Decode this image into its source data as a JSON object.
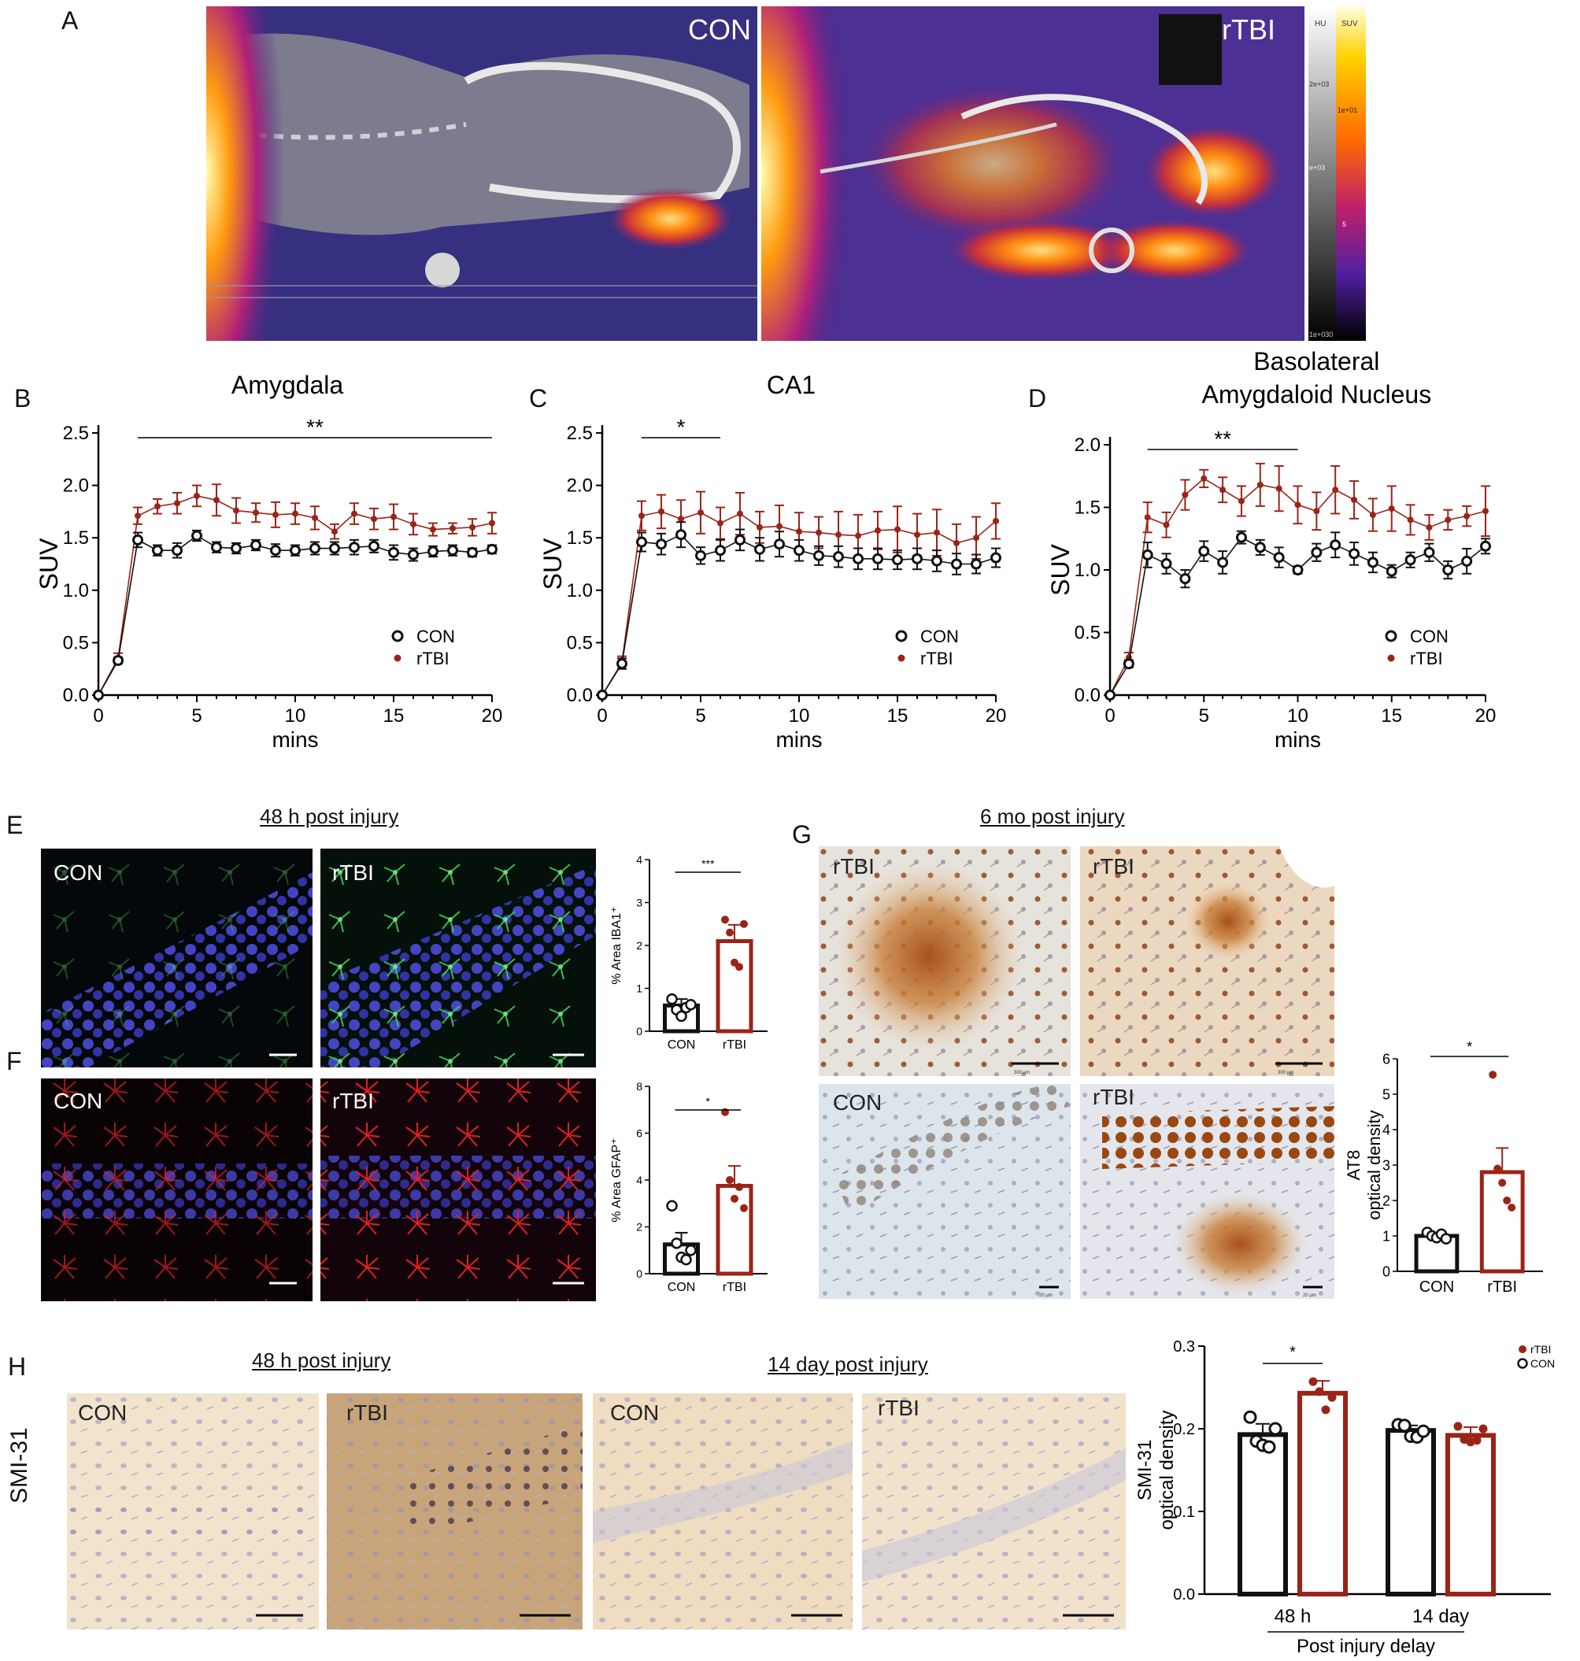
{
  "panel_letters": {
    "A": "A",
    "B": "B",
    "C": "C",
    "D": "D",
    "E": "E",
    "F": "F",
    "G": "G",
    "H": "H"
  },
  "pet": {
    "labels": [
      "CON",
      "rTBI"
    ],
    "colorbar": {
      "hu_label": "HU",
      "suv_label": "SUV",
      "hu_ticks": [
        "2e+03",
        "e+03",
        "1e+030"
      ],
      "suv_ticks": [
        "1e+01",
        "5"
      ]
    },
    "colors": {
      "fire": "#f4a000",
      "accent": "#cc2b00",
      "background": "#2a2060"
    }
  },
  "micro": {
    "e_title": "48 h post injury",
    "g_title": "6 mo post injury",
    "h_title_48": "48 h post injury",
    "h_title_14": "14 day post injury",
    "h_side_label": "SMI-31",
    "e_labels": [
      "CON",
      "rTBI"
    ],
    "f_labels": [
      "CON",
      "rTBI"
    ],
    "g_labels": [
      "rTBI",
      "rTBI",
      "CON",
      "rTBI"
    ],
    "h_labels": [
      "CON",
      "rTBI",
      "CON",
      "rTBI"
    ],
    "scale_texts": [
      "300 µm",
      "300 µm",
      "20 µm",
      "20 µm"
    ]
  },
  "chart_data": [
    {
      "id": "B",
      "type": "line",
      "title": "Amygdala",
      "xlabel": "mins",
      "ylabel": "SUV",
      "xlim": [
        0,
        20
      ],
      "ylim": [
        0,
        2.5
      ],
      "xticks": [
        0,
        5,
        10,
        15,
        20
      ],
      "yticks": [
        0.0,
        0.5,
        1.0,
        1.5,
        2.0,
        2.5
      ],
      "x": [
        0,
        1,
        2,
        3,
        4,
        5,
        6,
        7,
        8,
        9,
        10,
        11,
        12,
        13,
        14,
        15,
        16,
        17,
        18,
        19,
        20
      ],
      "series": [
        {
          "name": "CON",
          "color": "#111111",
          "marker": "open-circle",
          "values": [
            0,
            0.33,
            1.48,
            1.38,
            1.38,
            1.52,
            1.41,
            1.4,
            1.43,
            1.38,
            1.38,
            1.4,
            1.4,
            1.41,
            1.42,
            1.36,
            1.34,
            1.37,
            1.38,
            1.36,
            1.39
          ],
          "errors": [
            0,
            0.03,
            0.07,
            0.05,
            0.07,
            0.05,
            0.05,
            0.05,
            0.05,
            0.06,
            0.05,
            0.06,
            0.06,
            0.07,
            0.06,
            0.07,
            0.06,
            0.05,
            0.05,
            0.04,
            0.04
          ]
        },
        {
          "name": "rTBI",
          "color": "#9b2418",
          "marker": "filled-circle",
          "values": [
            0,
            0.35,
            1.71,
            1.8,
            1.83,
            1.9,
            1.86,
            1.76,
            1.74,
            1.72,
            1.73,
            1.69,
            1.56,
            1.73,
            1.68,
            1.7,
            1.63,
            1.58,
            1.59,
            1.6,
            1.64
          ],
          "errors": [
            0,
            0.05,
            0.08,
            0.07,
            0.1,
            0.1,
            0.15,
            0.12,
            0.09,
            0.12,
            0.1,
            0.11,
            0.07,
            0.1,
            0.1,
            0.12,
            0.1,
            0.06,
            0.05,
            0.08,
            0.1
          ]
        }
      ],
      "significance": {
        "label": "**",
        "from": 2,
        "to": 20
      },
      "legend_position": "lower-right"
    },
    {
      "id": "C",
      "type": "line",
      "title": "CA1",
      "xlabel": "mins",
      "ylabel": "SUV",
      "xlim": [
        0,
        20
      ],
      "ylim": [
        0,
        2.5
      ],
      "xticks": [
        0,
        5,
        10,
        15,
        20
      ],
      "yticks": [
        0.0,
        0.5,
        1.0,
        1.5,
        2.0,
        2.5
      ],
      "x": [
        0,
        1,
        2,
        3,
        4,
        5,
        6,
        7,
        8,
        9,
        10,
        11,
        12,
        13,
        14,
        15,
        16,
        17,
        18,
        19,
        20
      ],
      "series": [
        {
          "name": "CON",
          "color": "#111111",
          "marker": "open-circle",
          "values": [
            0,
            0.3,
            1.46,
            1.44,
            1.53,
            1.33,
            1.38,
            1.48,
            1.39,
            1.44,
            1.38,
            1.33,
            1.32,
            1.3,
            1.3,
            1.29,
            1.3,
            1.28,
            1.25,
            1.25,
            1.31
          ],
          "errors": [
            0,
            0.05,
            0.09,
            0.1,
            0.12,
            0.08,
            0.1,
            0.1,
            0.11,
            0.12,
            0.1,
            0.09,
            0.1,
            0.1,
            0.1,
            0.09,
            0.1,
            0.1,
            0.1,
            0.09,
            0.09
          ]
        },
        {
          "name": "rTBI",
          "color": "#9b2418",
          "marker": "filled-circle",
          "values": [
            0,
            0.31,
            1.71,
            1.75,
            1.68,
            1.74,
            1.64,
            1.73,
            1.6,
            1.61,
            1.56,
            1.55,
            1.53,
            1.52,
            1.57,
            1.58,
            1.53,
            1.55,
            1.45,
            1.5,
            1.66
          ],
          "errors": [
            0,
            0.06,
            0.14,
            0.16,
            0.18,
            0.2,
            0.15,
            0.2,
            0.15,
            0.2,
            0.18,
            0.15,
            0.22,
            0.2,
            0.18,
            0.22,
            0.2,
            0.22,
            0.18,
            0.2,
            0.17
          ]
        }
      ],
      "significance": {
        "label": "*",
        "from": 2,
        "to": 6
      },
      "legend_position": "lower-right"
    },
    {
      "id": "D",
      "type": "line",
      "title": "Basolateral Amygdaloid Nucleus",
      "title_lines": [
        "Basolateral",
        "Amygdaloid Nucleus"
      ],
      "xlabel": "mins",
      "ylabel": "SUV",
      "xlim": [
        0,
        20
      ],
      "ylim": [
        0,
        2.0
      ],
      "xticks": [
        0,
        5,
        10,
        15,
        20
      ],
      "yticks": [
        0.0,
        0.5,
        1.0,
        1.5,
        2.0
      ],
      "x": [
        0,
        1,
        2,
        3,
        4,
        5,
        6,
        7,
        8,
        9,
        10,
        11,
        12,
        13,
        14,
        15,
        16,
        17,
        18,
        19,
        20
      ],
      "series": [
        {
          "name": "CON",
          "color": "#111111",
          "marker": "open-circle",
          "values": [
            0,
            0.25,
            1.12,
            1.05,
            0.93,
            1.15,
            1.06,
            1.26,
            1.18,
            1.1,
            1.0,
            1.14,
            1.2,
            1.13,
            1.06,
            0.99,
            1.08,
            1.14,
            1.0,
            1.07,
            1.19
          ],
          "errors": [
            0,
            0.03,
            0.1,
            0.08,
            0.07,
            0.08,
            0.09,
            0.05,
            0.06,
            0.08,
            0.03,
            0.07,
            0.1,
            0.09,
            0.08,
            0.05,
            0.06,
            0.07,
            0.07,
            0.1,
            0.06
          ]
        },
        {
          "name": "rTBI",
          "color": "#9b2418",
          "marker": "filled-circle",
          "values": [
            0,
            0.3,
            1.42,
            1.36,
            1.6,
            1.73,
            1.64,
            1.55,
            1.68,
            1.65,
            1.52,
            1.47,
            1.64,
            1.56,
            1.44,
            1.49,
            1.4,
            1.34,
            1.4,
            1.43,
            1.47
          ],
          "errors": [
            0,
            0.04,
            0.12,
            0.1,
            0.12,
            0.07,
            0.1,
            0.12,
            0.17,
            0.18,
            0.15,
            0.15,
            0.19,
            0.15,
            0.13,
            0.18,
            0.12,
            0.1,
            0.08,
            0.08,
            0.2
          ]
        }
      ],
      "significance": {
        "label": "**",
        "from": 2,
        "to": 10
      },
      "legend_position": "lower-right"
    },
    {
      "id": "E",
      "type": "bar",
      "ylabel": "% Area IBA1⁺",
      "categories": [
        "CON",
        "rTBI"
      ],
      "values": [
        0.6,
        2.1
      ],
      "errors": [
        0.15,
        0.38
      ],
      "colors": [
        "#111111",
        "#9b2418"
      ],
      "points": [
        [
          0.75,
          0.5,
          0.35,
          0.55,
          0.62
        ],
        [
          2.6,
          2.3,
          1.6,
          1.5,
          2.5
        ]
      ],
      "ylim": [
        0,
        4
      ],
      "yticks": [
        0,
        1,
        2,
        3,
        4
      ],
      "significance": {
        "label": "***"
      }
    },
    {
      "id": "F",
      "type": "bar",
      "ylabel": "% Area GFAP⁺",
      "categories": [
        "CON",
        "rTBI"
      ],
      "values": [
        1.25,
        3.75
      ],
      "errors": [
        0.5,
        0.85
      ],
      "colors": [
        "#111111",
        "#9b2418"
      ],
      "points": [
        [
          2.9,
          1.3,
          0.7,
          0.6,
          1.0
        ],
        [
          6.9,
          4.0,
          3.2,
          3.7,
          2.8
        ]
      ],
      "ylim": [
        0,
        8
      ],
      "yticks": [
        0,
        2,
        4,
        6,
        8
      ],
      "significance": {
        "label": "*"
      }
    },
    {
      "id": "G",
      "type": "bar",
      "ylabel": "AT8 optical density",
      "ylabel_lines": [
        "AT8",
        "optical density"
      ],
      "categories": [
        "CON",
        "rTBI"
      ],
      "values": [
        1.0,
        2.8
      ],
      "errors": [
        0.06,
        0.68
      ],
      "colors": [
        "#111111",
        "#9b2418"
      ],
      "points": [
        [
          1.1,
          1.0,
          0.95,
          1.05,
          0.92
        ],
        [
          5.55,
          2.9,
          2.5,
          2.0,
          1.8
        ]
      ],
      "ylim": [
        0,
        6
      ],
      "yticks": [
        0,
        1,
        2,
        3,
        4,
        5,
        6
      ],
      "significance": {
        "label": "*"
      }
    },
    {
      "id": "H",
      "type": "bar",
      "ylabel": "SMI-31 optical density",
      "ylabel_lines": [
        "SMI-31",
        "optical density"
      ],
      "xlabel": "Post injury delay",
      "groups": [
        "48 h",
        "14 day"
      ],
      "series": [
        {
          "name": "CON",
          "color": "#111111",
          "marker": "open-circle",
          "values": [
            0.193,
            0.198
          ],
          "errors": [
            0.013,
            0.006
          ],
          "points": [
            [
              0.214,
              0.185,
              0.18,
              0.178,
              0.2
            ],
            [
              0.205,
              0.204,
              0.191,
              0.19,
              0.197
            ]
          ]
        },
        {
          "name": "rTBI",
          "color": "#9b2418",
          "marker": "filled-circle",
          "values": [
            0.243,
            0.192
          ],
          "errors": [
            0.015,
            0.01
          ],
          "points": [
            [
              0.257,
              0.245,
              0.223,
              0.238
            ],
            [
              0.203,
              0.187,
              0.184,
              0.186,
              0.2
            ]
          ]
        }
      ],
      "ylim": [
        0,
        0.3
      ],
      "yticks": [
        0.0,
        0.1,
        0.2,
        0.3
      ],
      "significance": {
        "label": "*"
      },
      "legend_position": "top-right"
    }
  ]
}
